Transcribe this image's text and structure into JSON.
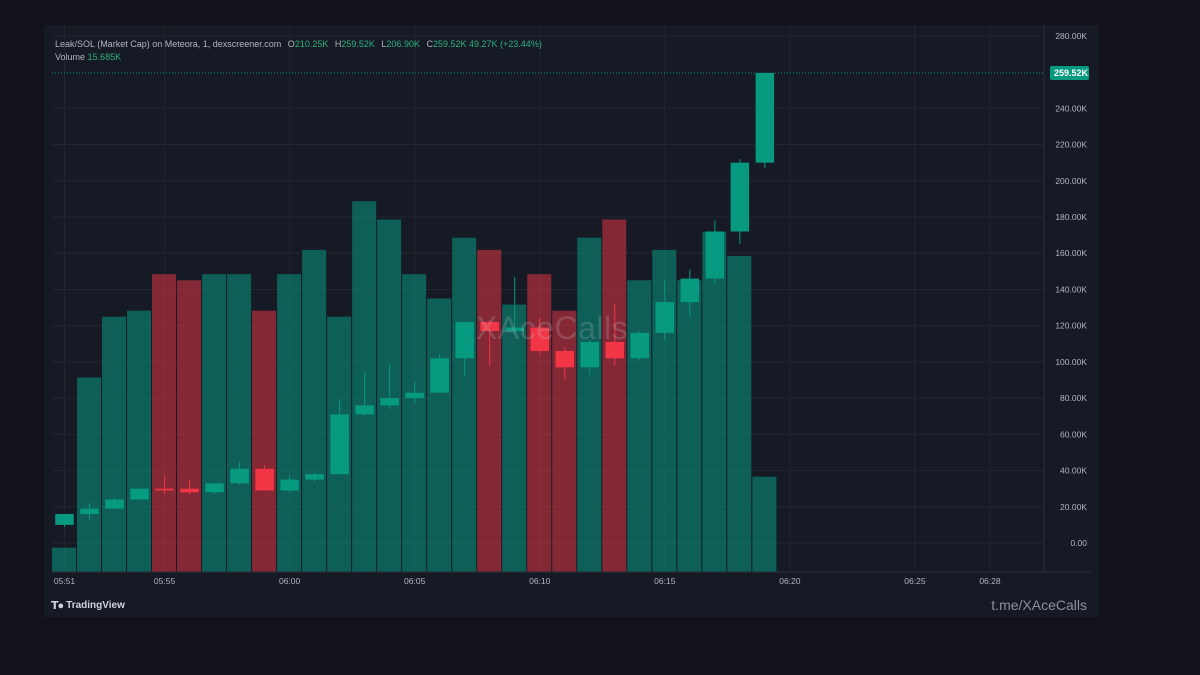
{
  "legend": {
    "symbol": "Leak/SOL (Market Cap) on Meteora, 1, dexscreener.com",
    "o_label": "O",
    "o_value": "210.25K",
    "h_label": "H",
    "h_value": "259.52K",
    "l_label": "L",
    "l_value": "206.90K",
    "c_label": "C",
    "c_value": "259.52K",
    "change": "49.27K (+23.44%)",
    "volume_label": "Volume",
    "volume_value": "15.685K"
  },
  "watermark": "XAceCalls",
  "brand": {
    "logo_icon": "tradingview-logo-icon",
    "name": "TradingView"
  },
  "link": "t.me/XAceCalls",
  "colors": {
    "up": "#089981",
    "down": "#f23645",
    "background": "#161a25",
    "grid": "#22262f",
    "axis_text": "#b2b5be"
  },
  "chart_data": {
    "type": "candlestick",
    "x_ticks": [
      "05:51",
      "05:55",
      "06:00",
      "06:05",
      "06:10",
      "06:15",
      "06:20",
      "06:25",
      "06:28"
    ],
    "y_ticks": [
      "280.00K",
      "240.00K",
      "220.00K",
      "200.00K",
      "180.00K",
      "160.00K",
      "140.00K",
      "120.00K",
      "100.00K",
      "80.00K",
      "60.00K",
      "40.00K",
      "20.00K",
      "0.00"
    ],
    "last_price_label": "259.52K",
    "ylim": [
      -16000,
      286000
    ],
    "xlim_minutes": [
      0,
      39.5
    ],
    "candles": [
      {
        "t": 0,
        "o": 10,
        "h": 16,
        "l": 9,
        "c": 16
      },
      {
        "t": 1,
        "o": 16,
        "h": 22,
        "l": 13,
        "c": 19
      },
      {
        "t": 2,
        "o": 19,
        "h": 25,
        "l": 19,
        "c": 24
      },
      {
        "t": 3,
        "o": 24,
        "h": 30,
        "l": 24,
        "c": 30
      },
      {
        "t": 4,
        "o": 30,
        "h": 37,
        "l": 27,
        "c": 29
      },
      {
        "t": 5,
        "o": 30,
        "h": 35,
        "l": 27,
        "c": 28
      },
      {
        "t": 6,
        "o": 28,
        "h": 33,
        "l": 27,
        "c": 33
      },
      {
        "t": 7,
        "o": 33,
        "h": 45,
        "l": 32,
        "c": 41
      },
      {
        "t": 8,
        "o": 41,
        "h": 43,
        "l": 29,
        "c": 29
      },
      {
        "t": 9,
        "o": 29,
        "h": 37,
        "l": 28,
        "c": 35
      },
      {
        "t": 10,
        "o": 35,
        "h": 39,
        "l": 34,
        "c": 38
      },
      {
        "t": 11,
        "o": 38,
        "h": 79,
        "l": 38,
        "c": 71
      },
      {
        "t": 12,
        "o": 71,
        "h": 94,
        "l": 70,
        "c": 76
      },
      {
        "t": 13,
        "o": 76,
        "h": 99,
        "l": 74,
        "c": 80
      },
      {
        "t": 14,
        "o": 80,
        "h": 89,
        "l": 77,
        "c": 83
      },
      {
        "t": 15,
        "o": 83,
        "h": 104,
        "l": 83,
        "c": 102
      },
      {
        "t": 16,
        "o": 102,
        "h": 122,
        "l": 92,
        "c": 122
      },
      {
        "t": 17,
        "o": 122,
        "h": 123,
        "l": 98,
        "c": 117
      },
      {
        "t": 18,
        "o": 117,
        "h": 147,
        "l": 115,
        "c": 119
      },
      {
        "t": 19,
        "o": 119,
        "h": 124,
        "l": 104,
        "c": 106
      },
      {
        "t": 20,
        "o": 106,
        "h": 108,
        "l": 90,
        "c": 97
      },
      {
        "t": 21,
        "o": 97,
        "h": 112,
        "l": 93,
        "c": 111
      },
      {
        "t": 22,
        "o": 111,
        "h": 132,
        "l": 98,
        "c": 102
      },
      {
        "t": 23,
        "o": 102,
        "h": 117,
        "l": 101,
        "c": 116
      },
      {
        "t": 24,
        "o": 116,
        "h": 145,
        "l": 112,
        "c": 133
      },
      {
        "t": 25,
        "o": 133,
        "h": 151,
        "l": 125,
        "c": 146
      },
      {
        "t": 26,
        "o": 146,
        "h": 178,
        "l": 143,
        "c": 172
      },
      {
        "t": 27,
        "o": 172,
        "h": 212,
        "l": 165,
        "c": 210
      },
      {
        "t": 28,
        "o": 210,
        "h": 259.52,
        "l": 206.9,
        "c": 259.52
      }
    ],
    "volume": [
      4,
      32,
      42,
      43,
      49,
      48,
      49,
      49,
      43,
      49,
      53,
      42,
      61,
      58,
      49,
      45,
      55,
      53,
      44,
      49,
      43,
      55,
      58,
      48,
      53,
      48,
      56,
      52,
      15.685
    ],
    "volume_scale_max": 90
  }
}
